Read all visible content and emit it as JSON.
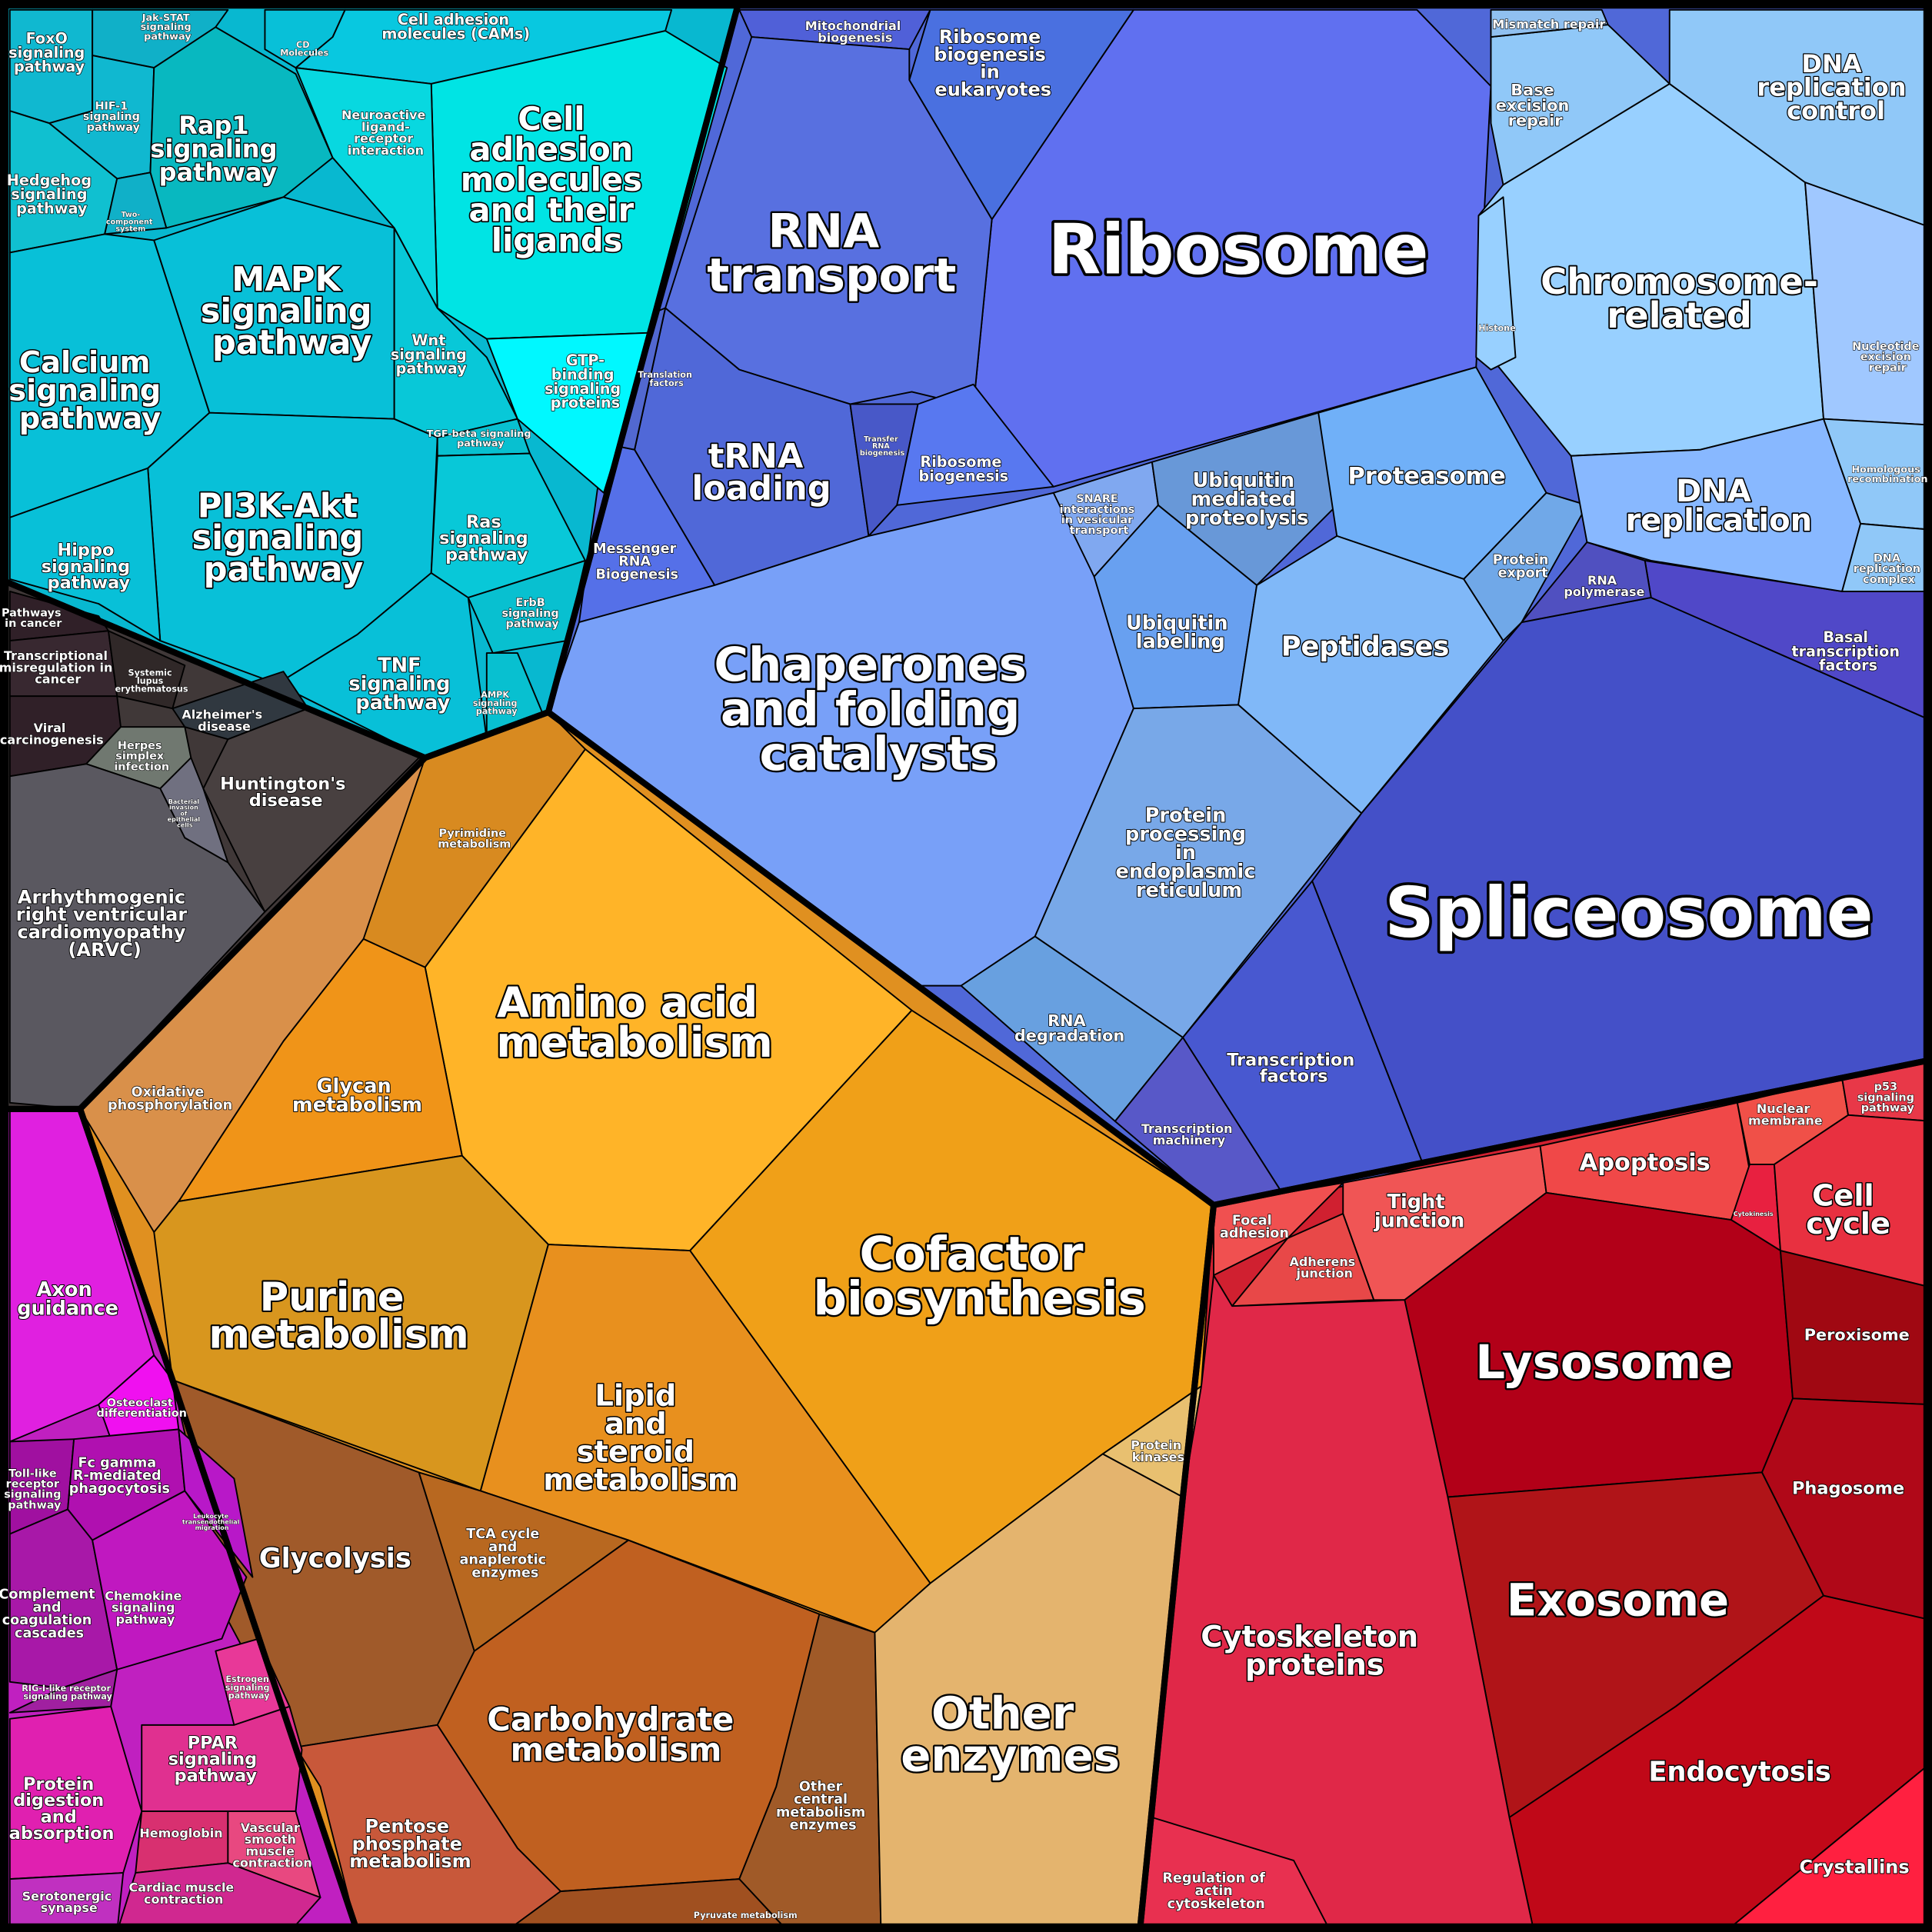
{
  "cells": [
    "Ribosome",
    "Ribosome biogenesis in eukaryotes",
    "Mitochondrial biogenesis",
    "RNA transport",
    "tRNA loading",
    "Transfer RNA biogenesis",
    "Ribosome biogenesis",
    "Messenger RNA Biogenesis",
    "Translation factors",
    "Chaperones and folding catalysts",
    "SNARE interactions in vesicular transport",
    "Ubiquitin mediated proteolysis",
    "Proteasome",
    "Ubiquitin labeling",
    "Peptidases",
    "Protein export",
    "Protein processing in endoplasmic reticulum",
    "RNA degradation",
    "Transcription machinery",
    "Transcription factors",
    "Spliceosome",
    "Basal transcription factors",
    "RNA polymerase",
    "Chromosome-related",
    "DNA replication control",
    "DNA replication",
    "Base excision repair",
    "Mismatch repair",
    "Nucleotide excision repair",
    "Homologous recombination",
    "DNA replication complex",
    "Histone",
    "FoxO signaling pathway",
    "Jak-STAT signaling pathway",
    "HIF-1 signaling pathway",
    "Rap1 signaling pathway",
    "Hedgehog signaling pathway",
    "Two-component system",
    "Calcium signaling pathway",
    "MAPK signaling pathway",
    "PI3K-Akt signaling pathway",
    "Hippo signaling pathway",
    "TNF signaling pathway",
    "Wnt signaling pathway",
    "TGF-beta signaling pathway",
    "Ras signaling pathway",
    "ErbB signaling pathway",
    "AMPK signaling pathway",
    "Cell adhesion molecules (CAMs)",
    "CD Molecules",
    "Cell adhesion molecules and their ligands",
    "Neuroactive ligand-receptor interaction",
    "GTP-binding signaling proteins",
    "Pathways in cancer",
    "Transcriptional misregulation in cancer",
    "Systemic lupus erythematosus",
    "Viral carcinogenesis",
    "Alzheimer's disease",
    "Herpes simplex infection",
    "Huntington's disease",
    "Bacterial invasion of epithelial cells",
    "Arrhythmogenic right ventricular cardiomyopathy (ARVC)",
    "Amino acid metabolism",
    "Cofactor biosynthesis",
    "Glycan metabolism",
    "Oxidative phosphorylation",
    "Pyrimidine metabolism",
    "Purine metabolism",
    "Lipid and steroid metabolism",
    "Glycolysis",
    "TCA cycle and anaplerotic enzymes",
    "Carbohydrate metabolism",
    "Other central metabolism enzymes",
    "Pentose phosphate metabolism",
    "Pyruvate metabolism",
    "Other enzymes",
    "Protein kinases",
    "Focal adhesion",
    "Adherens junction",
    "Tight junction",
    "Apoptosis",
    "Nuclear membrane",
    "p53 signaling pathway",
    "Cytokinesis",
    "Cell cycle",
    "Lysosome",
    "Peroxisome",
    "Phagosome",
    "Exosome",
    "Endocytosis",
    "Crystallins",
    "Cytoskeleton proteins",
    "Regulation of actin cytoskeleton",
    "Axon guidance",
    "Osteoclast differentiation",
    "Toll-like receptor signaling pathway",
    "Fc gamma R-mediated phagocytosis",
    "Complement and coagulation cascades",
    "Chemokine signaling pathway",
    "Leukocyte transendothelial migration",
    "RIG-I-like receptor signaling pathway",
    "Estrogen signaling pathway",
    "PPAR signaling pathway",
    "Protein digestion and absorption",
    "Hemoglobin",
    "Vascular smooth muscle contraction",
    "Cardiac muscle contraction",
    "Serotonergic synapse"
  ]
}
